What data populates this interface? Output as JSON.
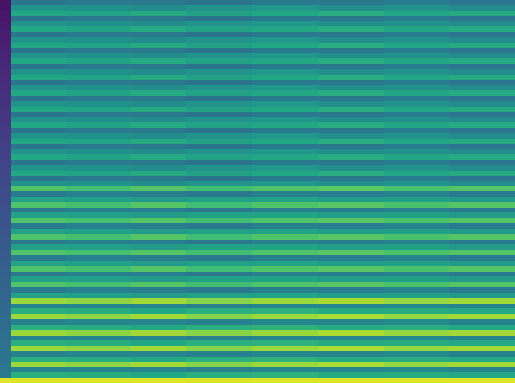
{
  "chart_data": {
    "type": "heatmap",
    "tick_labels": false,
    "zlim": [
      0,
      1
    ],
    "x_bins": [
      0,
      1,
      6,
      12,
      17,
      23,
      29,
      35,
      41,
      47
    ],
    "cells": [
      [
        0.05,
        0.39,
        0.41,
        0.4,
        0.38,
        0.41,
        0.4,
        0.42,
        0.39
      ],
      [
        0.055,
        0.51,
        0.5,
        0.48,
        0.51,
        0.52,
        0.49,
        0.5,
        0.48
      ],
      [
        0.06,
        0.6,
        0.58,
        0.61,
        0.57,
        0.6,
        0.62,
        0.59,
        0.61
      ],
      [
        0.065,
        0.39,
        0.41,
        0.4,
        0.38,
        0.41,
        0.4,
        0.42,
        0.39
      ],
      [
        0.07,
        0.51,
        0.5,
        0.48,
        0.51,
        0.52,
        0.49,
        0.5,
        0.48
      ],
      [
        0.075,
        0.6,
        0.58,
        0.61,
        0.57,
        0.6,
        0.62,
        0.59,
        0.61
      ],
      [
        0.08,
        0.39,
        0.41,
        0.4,
        0.38,
        0.41,
        0.4,
        0.42,
        0.39
      ],
      [
        0.085,
        0.51,
        0.5,
        0.48,
        0.51,
        0.52,
        0.49,
        0.5,
        0.48
      ],
      [
        0.09,
        0.6,
        0.58,
        0.61,
        0.57,
        0.6,
        0.62,
        0.59,
        0.61
      ],
      [
        0.095,
        0.39,
        0.41,
        0.4,
        0.38,
        0.41,
        0.4,
        0.42,
        0.39
      ],
      [
        0.1,
        0.51,
        0.5,
        0.48,
        0.51,
        0.52,
        0.49,
        0.5,
        0.48
      ],
      [
        0.105,
        0.6,
        0.58,
        0.61,
        0.57,
        0.6,
        0.62,
        0.59,
        0.61
      ],
      [
        0.11,
        0.39,
        0.41,
        0.4,
        0.38,
        0.41,
        0.4,
        0.42,
        0.39
      ],
      [
        0.115,
        0.51,
        0.5,
        0.48,
        0.51,
        0.52,
        0.49,
        0.5,
        0.48
      ],
      [
        0.12,
        0.6,
        0.58,
        0.61,
        0.57,
        0.6,
        0.62,
        0.59,
        0.61
      ],
      [
        0.125,
        0.39,
        0.41,
        0.4,
        0.38,
        0.41,
        0.4,
        0.42,
        0.39
      ],
      [
        0.13,
        0.51,
        0.5,
        0.48,
        0.51,
        0.52,
        0.49,
        0.5,
        0.48
      ],
      [
        0.135,
        0.6,
        0.58,
        0.61,
        0.57,
        0.6,
        0.62,
        0.59,
        0.61
      ],
      [
        0.14,
        0.39,
        0.41,
        0.4,
        0.38,
        0.41,
        0.4,
        0.42,
        0.39
      ],
      [
        0.145,
        0.51,
        0.5,
        0.48,
        0.51,
        0.52,
        0.49,
        0.5,
        0.48
      ],
      [
        0.15,
        0.6,
        0.58,
        0.61,
        0.57,
        0.6,
        0.62,
        0.59,
        0.61
      ],
      [
        0.155,
        0.39,
        0.41,
        0.4,
        0.38,
        0.41,
        0.4,
        0.42,
        0.39
      ],
      [
        0.16,
        0.51,
        0.5,
        0.48,
        0.51,
        0.52,
        0.49,
        0.5,
        0.48
      ],
      [
        0.165,
        0.6,
        0.58,
        0.61,
        0.57,
        0.6,
        0.62,
        0.59,
        0.61
      ],
      [
        0.17,
        0.39,
        0.41,
        0.4,
        0.38,
        0.41,
        0.4,
        0.42,
        0.39
      ],
      [
        0.175,
        0.51,
        0.5,
        0.48,
        0.51,
        0.52,
        0.49,
        0.5,
        0.48
      ],
      [
        0.18,
        0.6,
        0.58,
        0.61,
        0.57,
        0.6,
        0.62,
        0.59,
        0.61
      ],
      [
        0.185,
        0.39,
        0.41,
        0.4,
        0.38,
        0.41,
        0.4,
        0.42,
        0.39
      ],
      [
        0.19,
        0.51,
        0.5,
        0.48,
        0.51,
        0.52,
        0.49,
        0.5,
        0.48
      ],
      [
        0.195,
        0.6,
        0.58,
        0.61,
        0.57,
        0.6,
        0.62,
        0.59,
        0.61
      ],
      [
        0.2,
        0.39,
        0.41,
        0.4,
        0.38,
        0.41,
        0.4,
        0.42,
        0.39
      ],
      [
        0.205,
        0.51,
        0.5,
        0.48,
        0.51,
        0.52,
        0.49,
        0.5,
        0.48
      ],
      [
        0.21,
        0.6,
        0.58,
        0.61,
        0.57,
        0.6,
        0.62,
        0.59,
        0.61
      ],
      [
        0.215,
        0.39,
        0.41,
        0.4,
        0.38,
        0.41,
        0.4,
        0.42,
        0.39
      ],
      [
        0.22,
        0.51,
        0.5,
        0.48,
        0.51,
        0.52,
        0.49,
        0.5,
        0.48
      ],
      [
        0.225,
        0.72,
        0.7,
        0.73,
        0.69,
        0.72,
        0.74,
        0.71,
        0.73
      ],
      [
        0.23,
        0.41,
        0.43,
        0.42,
        0.4,
        0.43,
        0.42,
        0.44,
        0.41
      ],
      [
        0.235,
        0.57,
        0.56,
        0.54,
        0.57,
        0.58,
        0.55,
        0.56,
        0.54
      ],
      [
        0.24,
        0.72,
        0.7,
        0.73,
        0.69,
        0.72,
        0.74,
        0.71,
        0.73
      ],
      [
        0.245,
        0.41,
        0.43,
        0.42,
        0.4,
        0.43,
        0.42,
        0.44,
        0.41
      ],
      [
        0.25,
        0.57,
        0.56,
        0.54,
        0.57,
        0.58,
        0.55,
        0.56,
        0.54
      ],
      [
        0.255,
        0.72,
        0.7,
        0.73,
        0.69,
        0.72,
        0.74,
        0.71,
        0.73
      ],
      [
        0.26,
        0.41,
        0.43,
        0.42,
        0.4,
        0.43,
        0.42,
        0.44,
        0.41
      ],
      [
        0.265,
        0.57,
        0.56,
        0.54,
        0.57,
        0.58,
        0.55,
        0.56,
        0.54
      ],
      [
        0.27,
        0.72,
        0.7,
        0.73,
        0.69,
        0.72,
        0.74,
        0.71,
        0.73
      ],
      [
        0.275,
        0.41,
        0.43,
        0.42,
        0.4,
        0.43,
        0.42,
        0.44,
        0.41
      ],
      [
        0.28,
        0.57,
        0.56,
        0.54,
        0.57,
        0.58,
        0.55,
        0.56,
        0.54
      ],
      [
        0.285,
        0.72,
        0.7,
        0.73,
        0.69,
        0.72,
        0.74,
        0.71,
        0.73
      ],
      [
        0.29,
        0.41,
        0.43,
        0.42,
        0.4,
        0.43,
        0.42,
        0.44,
        0.41
      ],
      [
        0.295,
        0.57,
        0.56,
        0.54,
        0.57,
        0.58,
        0.55,
        0.56,
        0.54
      ],
      [
        0.3,
        0.72,
        0.7,
        0.73,
        0.69,
        0.72,
        0.74,
        0.71,
        0.73
      ],
      [
        0.305,
        0.41,
        0.43,
        0.42,
        0.4,
        0.43,
        0.42,
        0.44,
        0.41
      ],
      [
        0.31,
        0.57,
        0.56,
        0.54,
        0.57,
        0.58,
        0.55,
        0.56,
        0.54
      ],
      [
        0.315,
        0.72,
        0.7,
        0.73,
        0.69,
        0.72,
        0.74,
        0.71,
        0.73
      ],
      [
        0.32,
        0.41,
        0.43,
        0.42,
        0.4,
        0.43,
        0.42,
        0.44,
        0.41
      ],
      [
        0.325,
        0.57,
        0.56,
        0.54,
        0.57,
        0.58,
        0.55,
        0.56,
        0.54
      ],
      [
        0.33,
        0.85,
        0.83,
        0.86,
        0.82,
        0.85,
        0.87,
        0.84,
        0.86
      ],
      [
        0.335,
        0.44,
        0.46,
        0.45,
        0.43,
        0.46,
        0.45,
        0.47,
        0.44
      ],
      [
        0.34,
        0.63,
        0.62,
        0.6,
        0.63,
        0.64,
        0.61,
        0.62,
        0.6
      ],
      [
        0.345,
        0.85,
        0.83,
        0.86,
        0.82,
        0.85,
        0.87,
        0.84,
        0.86
      ],
      [
        0.35,
        0.44,
        0.46,
        0.45,
        0.43,
        0.46,
        0.45,
        0.47,
        0.44
      ],
      [
        0.355,
        0.63,
        0.62,
        0.6,
        0.63,
        0.64,
        0.61,
        0.62,
        0.6
      ],
      [
        0.36,
        0.85,
        0.83,
        0.86,
        0.82,
        0.85,
        0.87,
        0.84,
        0.86
      ],
      [
        0.365,
        0.44,
        0.46,
        0.45,
        0.43,
        0.46,
        0.45,
        0.47,
        0.44
      ],
      [
        0.37,
        0.63,
        0.62,
        0.6,
        0.63,
        0.64,
        0.61,
        0.62,
        0.6
      ],
      [
        0.375,
        0.85,
        0.83,
        0.86,
        0.82,
        0.85,
        0.87,
        0.84,
        0.86
      ],
      [
        0.38,
        0.44,
        0.46,
        0.45,
        0.43,
        0.46,
        0.45,
        0.47,
        0.44
      ],
      [
        0.385,
        0.63,
        0.62,
        0.6,
        0.63,
        0.64,
        0.61,
        0.62,
        0.6
      ],
      [
        0.39,
        0.85,
        0.83,
        0.86,
        0.82,
        0.85,
        0.87,
        0.84,
        0.86
      ],
      [
        0.395,
        0.44,
        0.46,
        0.45,
        0.43,
        0.46,
        0.45,
        0.47,
        0.44
      ],
      [
        0.4,
        0.63,
        0.62,
        0.6,
        0.63,
        0.64,
        0.61,
        0.62,
        0.6
      ],
      [
        0.95,
        0.95,
        0.95,
        0.95,
        0.95,
        0.95,
        0.95,
        0.95,
        0.95
      ]
    ]
  }
}
